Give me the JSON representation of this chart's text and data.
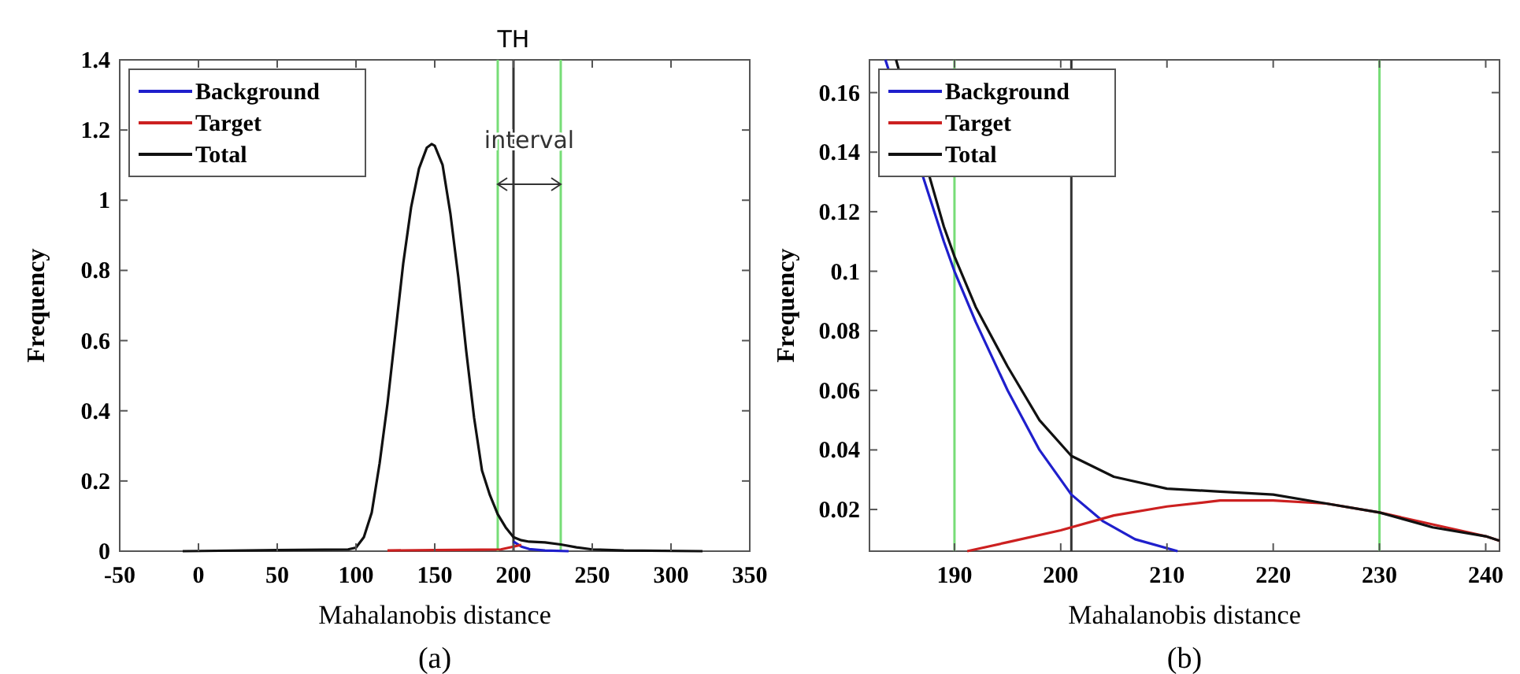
{
  "chart_data": [
    {
      "type": "line",
      "xlabel": "Mahalanobis distance",
      "ylabel": "Frequency",
      "xlim": [
        -50,
        350
      ],
      "ylim": [
        0,
        1.4
      ],
      "xticks": [
        -50,
        0,
        50,
        100,
        150,
        200,
        250,
        300,
        350
      ],
      "yticks": [
        0,
        0.2,
        0.4,
        0.6,
        0.8,
        1,
        1.2,
        1.4
      ],
      "legend": "top left",
      "grid": false,
      "series": [
        {
          "name": "Background",
          "color": "#1f1fcc",
          "x": [
            200,
            205,
            210,
            220,
            235
          ],
          "values": [
            0.027,
            0.013,
            0.006,
            0.002,
            0
          ]
        },
        {
          "name": "Target",
          "color": "#cc2020",
          "x": [
            120,
            150,
            180,
            192,
            200,
            205
          ],
          "values": [
            0.002,
            0.003,
            0.004,
            0.005,
            0.013,
            0.018
          ]
        },
        {
          "name": "Total",
          "color": "#111111",
          "x": [
            -10,
            50,
            95,
            100,
            105,
            110,
            115,
            120,
            125,
            130,
            135,
            140,
            145,
            148,
            150,
            155,
            160,
            165,
            170,
            175,
            180,
            185,
            190,
            195,
            200,
            205,
            210,
            220,
            230,
            240,
            250,
            270,
            320
          ],
          "values": [
            0,
            0.003,
            0.005,
            0.01,
            0.04,
            0.11,
            0.25,
            0.42,
            0.62,
            0.82,
            0.98,
            1.09,
            1.15,
            1.16,
            1.155,
            1.1,
            0.96,
            0.78,
            0.57,
            0.38,
            0.23,
            0.16,
            0.105,
            0.068,
            0.04,
            0.031,
            0.027,
            0.025,
            0.019,
            0.011,
            0.005,
            0.002,
            0
          ]
        }
      ],
      "ref_lines": [
        {
          "axis": "x",
          "value": 190,
          "color": "#77dd77"
        },
        {
          "axis": "x",
          "value": 230,
          "color": "#77dd77"
        },
        {
          "axis": "x",
          "value": 200,
          "label": "TH",
          "color": "#333333"
        }
      ],
      "annotations": [
        "interval",
        "(a)"
      ]
    },
    {
      "type": "line",
      "xlabel": "Mahalanobis distance",
      "ylabel": "Frequency",
      "xlim": [
        182,
        241.3
      ],
      "ylim": [
        0.006,
        0.171
      ],
      "xticks": [
        190,
        200,
        210,
        220,
        230,
        240
      ],
      "yticks": [
        0.02,
        0.04,
        0.06,
        0.08,
        0.1,
        0.12,
        0.14,
        0.16
      ],
      "legend": "top left",
      "grid": false,
      "series": [
        {
          "name": "Background",
          "color": "#1f1fcc",
          "x": [
            183.5,
            189,
            190,
            192,
            195,
            198,
            201,
            204,
            207,
            211
          ],
          "values": [
            0.171,
            0.11,
            0.1,
            0.083,
            0.06,
            0.04,
            0.025,
            0.016,
            0.01,
            0.006
          ]
        },
        {
          "name": "Target",
          "color": "#cc2020",
          "x": [
            191.2,
            195,
            200,
            205,
            210,
            215,
            220,
            225,
            230,
            235,
            240,
            241.3
          ],
          "values": [
            0.006,
            0.009,
            0.013,
            0.018,
            0.021,
            0.023,
            0.023,
            0.022,
            0.019,
            0.015,
            0.011,
            0.0095
          ]
        },
        {
          "name": "Total",
          "color": "#111111",
          "x": [
            184.5,
            189,
            190,
            192,
            195,
            198,
            201,
            205,
            210,
            215,
            220,
            225,
            230,
            235,
            240,
            241.3
          ],
          "values": [
            0.171,
            0.115,
            0.105,
            0.088,
            0.068,
            0.05,
            0.038,
            0.031,
            0.027,
            0.026,
            0.025,
            0.022,
            0.019,
            0.014,
            0.011,
            0.0095
          ]
        }
      ],
      "ref_lines": [
        {
          "axis": "x",
          "value": 190,
          "color": "#77dd77"
        },
        {
          "axis": "x",
          "value": 230,
          "color": "#77dd77"
        },
        {
          "axis": "x",
          "value": 201,
          "color": "#333333"
        }
      ],
      "annotations": [
        "(b)"
      ]
    }
  ]
}
